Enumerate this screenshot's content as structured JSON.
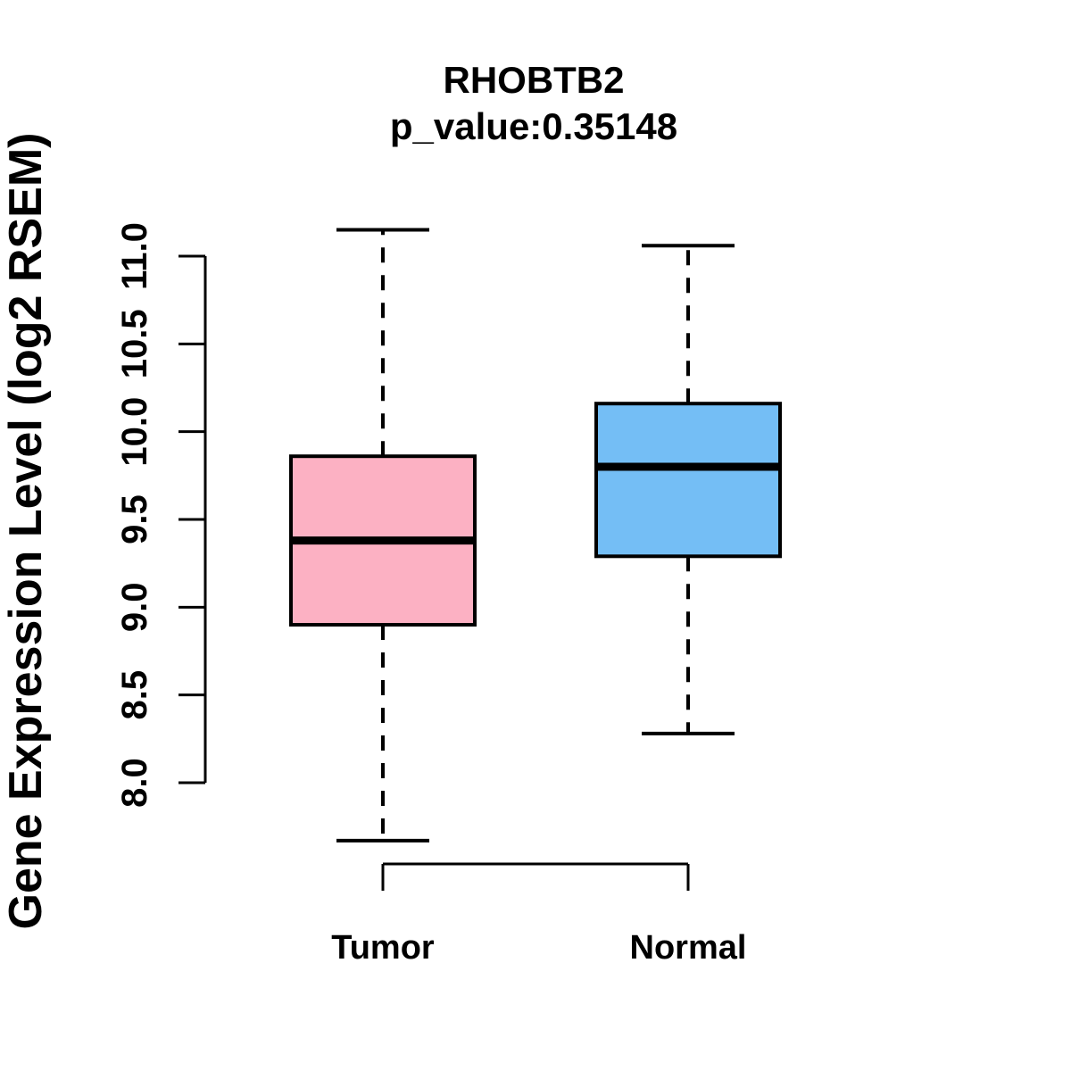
{
  "title": "RHOBTB2",
  "subtitle": "p_value:0.35148",
  "chart_data": {
    "type": "boxplot",
    "title": "RHOBTB2",
    "subtitle": "p_value:0.35148",
    "xlabel": "",
    "ylabel": "Gene Expression Level (log2 RSEM)",
    "categories": [
      "Tumor",
      "Normal"
    ],
    "yticks": [
      8.0,
      8.5,
      9.0,
      9.5,
      10.0,
      10.5,
      11.0
    ],
    "ytick_labels": [
      "8.0",
      "8.5",
      "9.0",
      "9.5",
      "10.0",
      "10.5",
      "11.0"
    ],
    "axis_range": [
      8.0,
      11.0
    ],
    "grid": false,
    "legend": "none",
    "colors": {
      "tumor_fill": "#FCB1C3",
      "normal_fill": "#74BEF5",
      "line": "#000000",
      "background": "#FFFFFF"
    },
    "series": [
      {
        "name": "Tumor",
        "color": "#FCB1C3",
        "whisker_low": 7.67,
        "q1": 8.9,
        "median": 9.38,
        "q3": 9.86,
        "whisker_high": 11.15
      },
      {
        "name": "Normal",
        "color": "#74BEF5",
        "whisker_low": 8.28,
        "q1": 9.29,
        "median": 9.8,
        "q3": 10.16,
        "whisker_high": 11.06
      }
    ]
  }
}
